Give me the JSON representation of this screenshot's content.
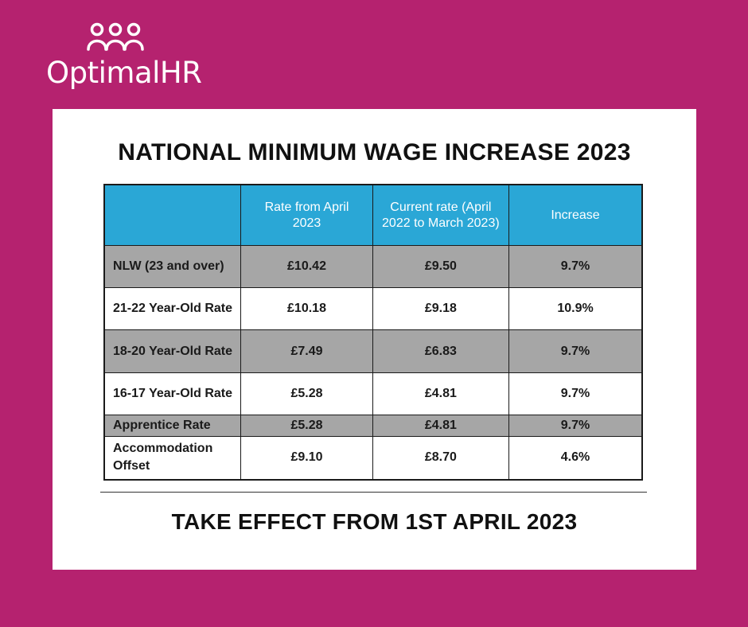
{
  "logo": {
    "text": "OptimalHR",
    "icon": "people-group-icon",
    "color": "#ffffff"
  },
  "colors": {
    "background": "#b5226f",
    "header": "#2aa7d6",
    "row_grey": "#a6a6a6"
  },
  "title": "NATIONAL MINIMUM WAGE INCREASE 2023",
  "table": {
    "headers": [
      "",
      "Rate from April 2023",
      "Current rate (April 2022 to March 2023)",
      "Increase"
    ],
    "rows": [
      {
        "label": "NLW (23 and over)",
        "rate_2023": "£10.42",
        "current": "£9.50",
        "increase": "9.7%"
      },
      {
        "label": "21-22 Year-Old Rate",
        "rate_2023": "£10.18",
        "current": "£9.18",
        "increase": "10.9%"
      },
      {
        "label": "18-20 Year-Old Rate",
        "rate_2023": "£7.49",
        "current": "£6.83",
        "increase": "9.7%"
      },
      {
        "label": "16-17 Year-Old Rate",
        "rate_2023": "£5.28",
        "current": "£4.81",
        "increase": "9.7%"
      },
      {
        "label": "Apprentice Rate",
        "rate_2023": "£5.28",
        "current": "£4.81",
        "increase": "9.7%"
      },
      {
        "label": "Accommodation Offset",
        "rate_2023": "£9.10",
        "current": "£8.70",
        "increase": "4.6%"
      }
    ]
  },
  "footer": "TAKE EFFECT FROM 1ST APRIL 2023"
}
